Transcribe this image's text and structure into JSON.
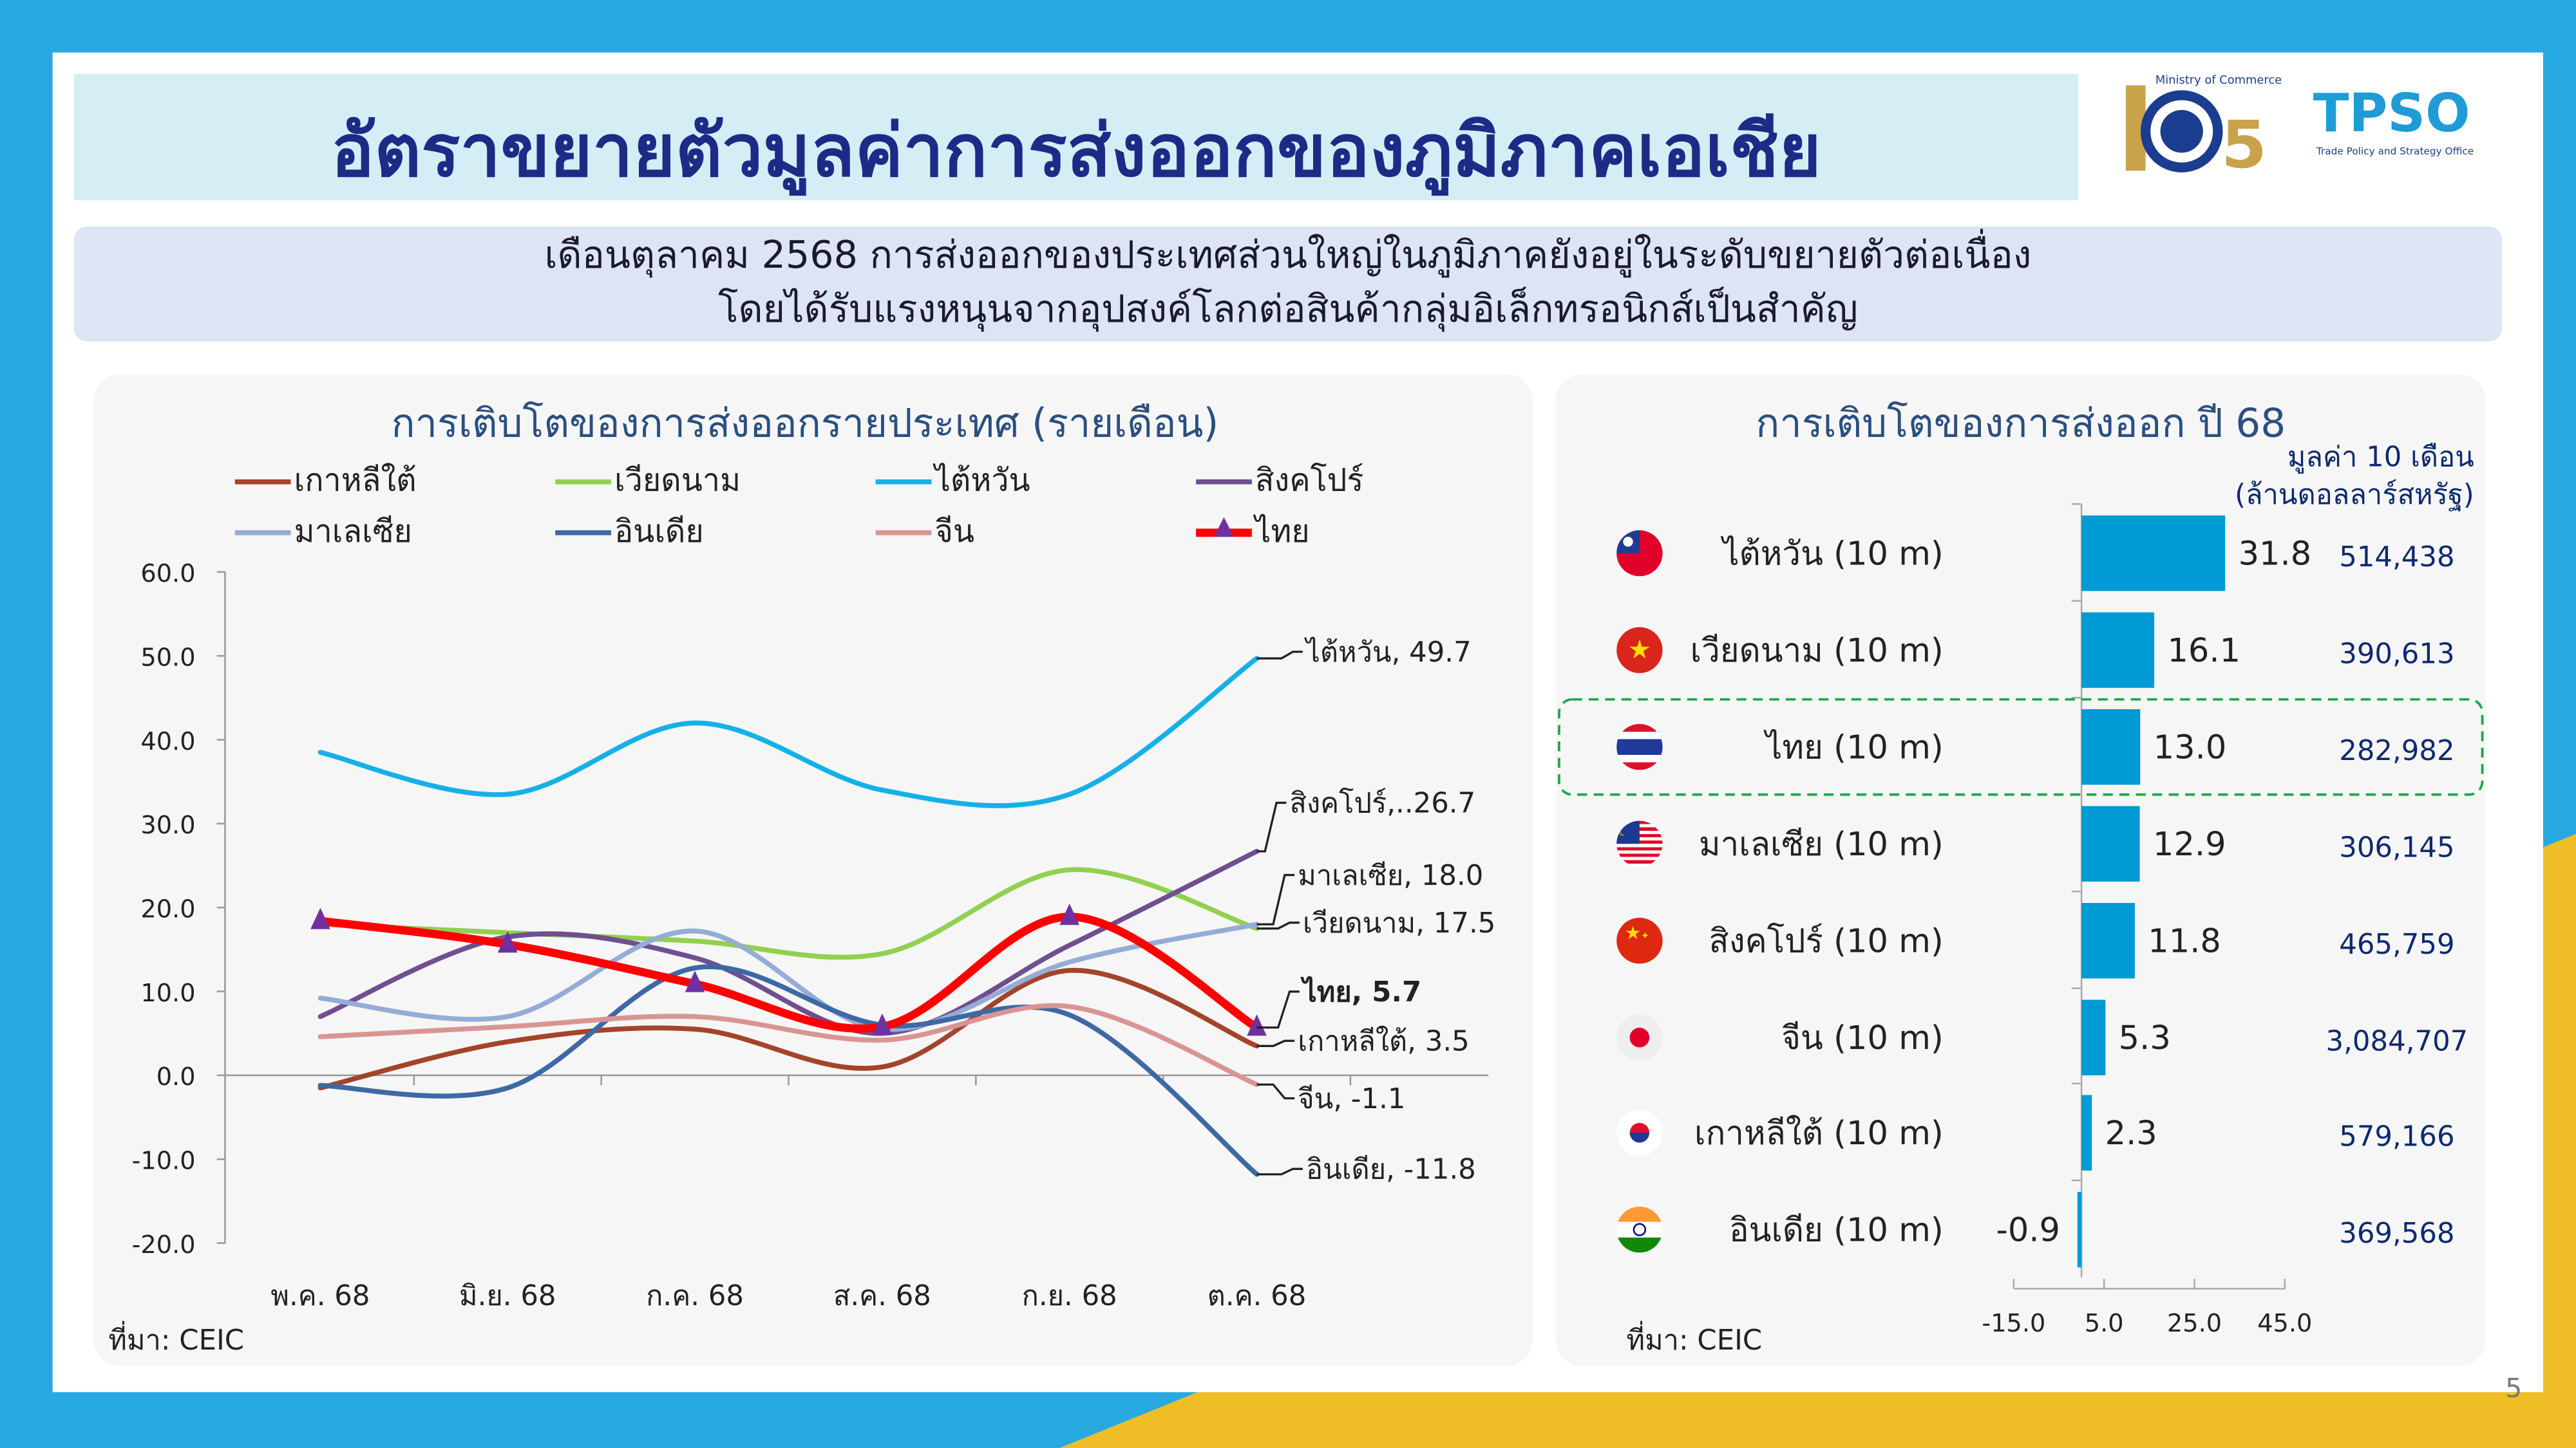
{
  "header": {
    "title": "อัตราขยายตัวมูลค่าการส่งออกของภูมิภาคเอเชีย",
    "logo_text_1": "กระทรวงพาณิชย์ Ministry of Commerce 105th",
    "logo_text_2": "TPSO สำนักงานนโยบายและยุทธศาสตร์การค้า Trade Policy and Strategy Office"
  },
  "summary": {
    "line1": "เดือนตุลาคม 2568 การส่งออกของประเทศส่วนใหญ่ในภูมิภาคยังอยู่ในระดับขยายตัวต่อเนื่อง",
    "line2": "โดยได้รับแรงหนุนจากอุปสงค์โลกต่อสินค้ากลุ่มอิเล็กทรอนิกส์เป็นสำคัญ"
  },
  "page_number": "5",
  "chart_data": [
    {
      "type": "line",
      "title": "การเติบโตของการส่งออกรายประเทศ (รายเดือน)",
      "source": "ที่มา: CEIC",
      "categories": [
        "พ.ค. 68",
        "มิ.ย. 68",
        "ก.ค. 68",
        "ส.ค. 68",
        "ก.ย. 68",
        "ต.ค. 68"
      ],
      "ylim": [
        -20,
        60
      ],
      "yticks": [
        "60.0",
        "50.0",
        "40.0",
        "30.0",
        "20.0",
        "10.0",
        "0.0",
        "-10.0",
        "-20.0"
      ],
      "grid": false,
      "legend_position": "top",
      "series": [
        {
          "name": "เกาหลีใต้",
          "color": "#a3442b",
          "values": [
            -1.5,
            4.0,
            5.5,
            1.0,
            12.5,
            3.5
          ],
          "end_label": "เกาหลีใต้, 3.5"
        },
        {
          "name": "เวียดนาม",
          "color": "#92d050",
          "values": [
            18.0,
            17.0,
            16.0,
            14.5,
            24.5,
            17.5
          ],
          "end_label": "เวียดนาม, 17.5"
        },
        {
          "name": "ไต้หวัน",
          "color": "#16b0e8",
          "values": [
            38.5,
            33.5,
            42.0,
            34.0,
            33.5,
            49.7
          ],
          "end_label": "ไต้หวัน, 49.7"
        },
        {
          "name": "สิงคโปร์",
          "color": "#6f4f90",
          "values": [
            7.0,
            16.5,
            14.0,
            5.0,
            15.5,
            26.7
          ],
          "end_label": "สิงคโปร์,..26.7"
        },
        {
          "name": "มาเลเซีย",
          "color": "#95acd6",
          "values": [
            9.2,
            7.0,
            17.2,
            5.5,
            13.5,
            18.0
          ],
          "end_label": "มาเลเซีย, 18.0"
        },
        {
          "name": "อินเดีย",
          "color": "#3d69a4",
          "values": [
            -1.2,
            -1.5,
            12.8,
            6.0,
            7.2,
            -11.8
          ],
          "end_label": "อินเดีย, -11.8"
        },
        {
          "name": "จีน",
          "color": "#d99594",
          "values": [
            4.6,
            5.8,
            7.0,
            4.2,
            8.2,
            -1.1
          ],
          "end_label": "จีน, -1.1"
        },
        {
          "name": "ไทย",
          "color": "#ff0000",
          "marker_color": "#7030a0",
          "values": [
            18.4,
            15.6,
            10.9,
            5.8,
            18.9,
            5.7
          ],
          "end_label": "ไทย, 5.7"
        }
      ]
    },
    {
      "type": "bar",
      "orientation": "horizontal",
      "title": "การเติบโตของการส่งออก ปี 68",
      "source": "ที่มา: CEIC",
      "amount_header_1": "มูลค่า 10 เดือน",
      "amount_header_2": "(ล้านดอลลาร์สหรัฐ)",
      "xlim": [
        -15,
        45
      ],
      "xticks": [
        "-15.0",
        "5.0",
        "25.0",
        "45.0"
      ],
      "bar_color": "#009bd5",
      "highlight_color": "#1aaa4a",
      "highlight": "ไทย (10 m)",
      "categories": [
        "ไต้หวัน (10 m)",
        "เวียดนาม (10 m)",
        "ไทย (10 m)",
        "มาเลเซีย (10 m)",
        "สิงคโปร์ (10 m)",
        "จีน (10 m)",
        "เกาหลีใต้ (10 m)",
        "อินเดีย (10 m)"
      ],
      "flags": [
        "taiwan-flag-icon",
        "vietnam-flag-icon",
        "thailand-flag-icon",
        "malaysia-flag-icon",
        "china-flag-icon",
        "japan-flag-icon",
        "korea-flag-icon",
        "india-flag-icon"
      ],
      "values": [
        31.8,
        16.1,
        13.0,
        12.9,
        11.8,
        5.3,
        2.3,
        -0.9
      ],
      "value_labels": [
        "31.8",
        "16.1",
        "13.0",
        "12.9",
        "11.8",
        "5.3",
        "2.3",
        "-0.9"
      ],
      "amounts": [
        "514,438",
        "390,613",
        "282,982",
        "306,145",
        "465,759",
        "3,084,707",
        "579,166",
        "369,568"
      ]
    }
  ]
}
